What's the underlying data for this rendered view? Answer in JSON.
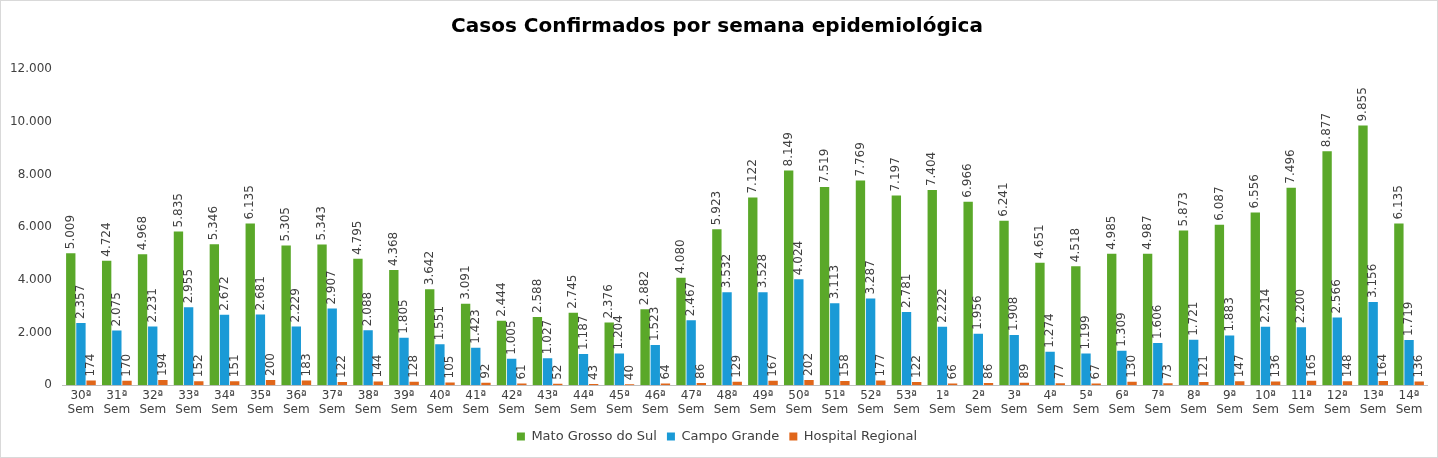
{
  "chart_data": {
    "type": "bar",
    "title": "Casos Confirmados por semana epidemiológica",
    "categories": [
      "30ª Sem",
      "31ª Sem",
      "32ª Sem",
      "33ª Sem",
      "34ª Sem",
      "35ª Sem",
      "36ª Sem",
      "37ª Sem",
      "38ª Sem",
      "39ª Sem",
      "40ª Sem",
      "41ª Sem",
      "42ª Sem",
      "43ª Sem",
      "44ª Sem",
      "45ª Sem",
      "46ª Sem",
      "47ª Sem",
      "48ª Sem",
      "49ª Sem",
      "50ª Sem",
      "51ª Sem",
      "52ª Sem",
      "53ª Sem",
      "1ª Sem",
      "2ª Sem",
      "3ª Sem",
      "4ª Sem",
      "5ª Sem",
      "6ª Sem",
      "7ª Sem",
      "8ª Sem",
      "9ª Sem",
      "10ª Sem",
      "11ª Sem",
      "12ª Sem",
      "13ª Sem",
      "14ª Sem"
    ],
    "series": [
      {
        "name": "Mato Grosso do Sul",
        "color": "#5aa829",
        "values": [
          5009,
          4724,
          4968,
          5835,
          5346,
          6135,
          5305,
          5343,
          4795,
          4368,
          3642,
          3091,
          2444,
          2588,
          2745,
          2376,
          2882,
          4080,
          5923,
          7122,
          8149,
          7519,
          7769,
          7197,
          7404,
          6966,
          6241,
          4651,
          4518,
          4985,
          4987,
          5873,
          6087,
          6556,
          7496,
          8877,
          9855,
          6135
        ],
        "value_labels": [
          "5.009",
          "4.724",
          "4.968",
          "5.835",
          "5.346",
          "6.135",
          "5.305",
          "5.343",
          "4.795",
          "4.368",
          "3.642",
          "3.091",
          "2.444",
          "2.588",
          "2.745",
          "2.376",
          "2.882",
          "4.080",
          "5.923",
          "7.122",
          "8.149",
          "7.519",
          "7.769",
          "7.197",
          "7.404",
          "6.966",
          "6.241",
          "4.651",
          "4.518",
          "4.985",
          "4.987",
          "5.873",
          "6.087",
          "6.556",
          "7.496",
          "8.877",
          "9.855",
          "6.135"
        ]
      },
      {
        "name": "Campo Grande",
        "color": "#1a9ad6",
        "values": [
          2357,
          2075,
          2231,
          2955,
          2672,
          2681,
          2229,
          2907,
          2088,
          1805,
          1551,
          1423,
          1005,
          1027,
          1187,
          1204,
          1523,
          2467,
          3532,
          3528,
          4024,
          3113,
          3287,
          2781,
          2222,
          1956,
          1908,
          1274,
          1199,
          1309,
          1606,
          1721,
          1883,
          2214,
          2200,
          2566,
          3156,
          1719
        ],
        "value_labels": [
          "2.357",
          "2.075",
          "2.231",
          "2.955",
          "2.672",
          "2.681",
          "2.229",
          "2.907",
          "2.088",
          "1.805",
          "1.551",
          "1.423",
          "1.005",
          "1.027",
          "1.187",
          "1.204",
          "1.523",
          "2.467",
          "3.532",
          "3.528",
          "4.024",
          "3.113",
          "3.287",
          "2.781",
          "2.222",
          "1.956",
          "1.908",
          "1.274",
          "1.199",
          "1.309",
          "1.606",
          "1.721",
          "1.883",
          "2.214",
          "2.200",
          "2.566",
          "3.156",
          "1.719"
        ]
      },
      {
        "name": "Hospital Regional",
        "color": "#e0661a",
        "values": [
          174,
          170,
          194,
          152,
          151,
          200,
          183,
          122,
          144,
          128,
          105,
          92,
          61,
          52,
          43,
          40,
          64,
          86,
          129,
          167,
          202,
          158,
          177,
          122,
          66,
          86,
          89,
          77,
          67,
          130,
          73,
          121,
          147,
          136,
          165,
          148,
          164,
          136
        ],
        "value_labels": [
          "174",
          "170",
          "194",
          "152",
          "151",
          "200",
          "183",
          "122",
          "144",
          "128",
          "105",
          "92",
          "61",
          "52",
          "43",
          "40",
          "64",
          "86",
          "129",
          "167",
          "202",
          "158",
          "177",
          "122",
          "66",
          "86",
          "89",
          "77",
          "67",
          "130",
          "73",
          "121",
          "147",
          "136",
          "165",
          "148",
          "164",
          "136"
        ]
      }
    ],
    "ylim": [
      0,
      12000
    ],
    "yticks": [
      {
        "value": 0,
        "label": "0"
      },
      {
        "value": 2000,
        "label": "2.000"
      },
      {
        "value": 4000,
        "label": "4.000"
      },
      {
        "value": 6000,
        "label": "6.000"
      },
      {
        "value": 8000,
        "label": "8.000"
      },
      {
        "value": 10000,
        "label": "10.000"
      },
      {
        "value": 12000,
        "label": "12.000"
      }
    ],
    "grid": false,
    "legend": "bottom"
  }
}
